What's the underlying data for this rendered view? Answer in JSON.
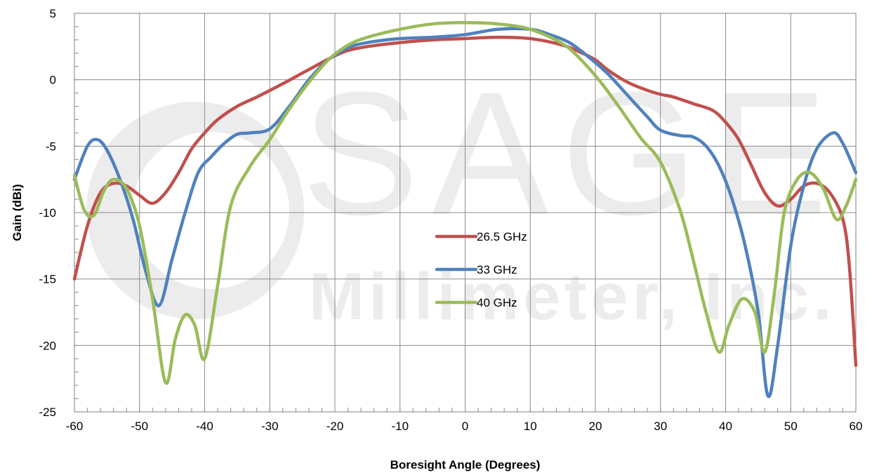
{
  "chart_data": {
    "type": "line",
    "xlabel": "Boresight Angle (Degrees)",
    "ylabel": "Gain (dBi)",
    "xlim": [
      -60,
      60
    ],
    "ylim": [
      -25,
      5
    ],
    "xticks": [
      -60,
      -50,
      -40,
      -30,
      -20,
      -10,
      0,
      10,
      20,
      30,
      40,
      50,
      60
    ],
    "yticks": [
      5,
      0,
      -5,
      -10,
      -15,
      -20,
      -25
    ],
    "grid": true,
    "legend_position": "center",
    "watermark": {
      "line1": "SAGE",
      "line2": "Millimeter, Inc."
    },
    "series": [
      {
        "name": "26.5 GHz",
        "color": "#c0504d",
        "x": [
          -60,
          -58,
          -56,
          -54,
          -52,
          -50,
          -48,
          -46,
          -44,
          -42,
          -40,
          -38,
          -35,
          -32,
          -28,
          -25,
          -22,
          -20,
          -18,
          -15,
          -10,
          -5,
          0,
          5,
          10,
          15,
          18,
          20,
          22,
          25,
          28,
          30,
          32,
          35,
          38,
          40,
          42,
          44,
          46,
          48,
          50,
          52,
          54,
          56,
          58,
          59,
          60
        ],
        "y": [
          -15,
          -11,
          -8.5,
          -7.8,
          -8,
          -8.7,
          -9.3,
          -8.5,
          -7,
          -5.2,
          -4,
          -3,
          -2,
          -1.3,
          -0.3,
          0.5,
          1.3,
          1.8,
          2.2,
          2.5,
          2.8,
          3,
          3.1,
          3.2,
          3.1,
          2.6,
          2,
          1.5,
          0.7,
          -0.2,
          -0.8,
          -1.1,
          -1.3,
          -1.8,
          -2.3,
          -3.2,
          -4.5,
          -6.5,
          -8.5,
          -9.5,
          -9,
          -8,
          -7.8,
          -8.5,
          -10.5,
          -14,
          -21.5
        ]
      },
      {
        "name": "33 GHz",
        "color": "#4f81bd",
        "x": [
          -60,
          -58,
          -56.5,
          -55,
          -53,
          -51,
          -49,
          -47,
          -45,
          -43,
          -41,
          -39,
          -37,
          -35,
          -33,
          -30,
          -27,
          -24,
          -21,
          -18,
          -15,
          -10,
          -5,
          0,
          5,
          10,
          13,
          16,
          19,
          22,
          25,
          28,
          30,
          33,
          35,
          37,
          39,
          41,
          43,
          45,
          46.5,
          48,
          50,
          52,
          54,
          56.5,
          58,
          60
        ],
        "y": [
          -7.5,
          -5,
          -4.5,
          -5.3,
          -7.5,
          -10.5,
          -14.5,
          -17,
          -13.5,
          -10,
          -7,
          -5.8,
          -4.8,
          -4.1,
          -4,
          -3.7,
          -2,
          0,
          1.5,
          2.4,
          2.8,
          3.1,
          3.2,
          3.4,
          3.8,
          3.8,
          3.4,
          2.8,
          1.7,
          0.4,
          -1.2,
          -2.8,
          -3.8,
          -4.2,
          -4.3,
          -5,
          -6.5,
          -9,
          -12.5,
          -17.5,
          -23.8,
          -20,
          -12.5,
          -8,
          -5.2,
          -4,
          -4.8,
          -7
        ]
      },
      {
        "name": "40 GHz",
        "color": "#9bbb59",
        "x": [
          -60,
          -58.5,
          -57,
          -55.5,
          -54,
          -52,
          -50,
          -48,
          -46,
          -44.5,
          -43,
          -41.5,
          -40,
          -38,
          -36,
          -33,
          -30,
          -27,
          -24,
          -21,
          -18,
          -15,
          -10,
          -5,
          0,
          5,
          10,
          15,
          18,
          21,
          24,
          27,
          30,
          33,
          35,
          37,
          39,
          40.5,
          42.5,
          44.5,
          46,
          47.5,
          49,
          51,
          53,
          55,
          57,
          58.5,
          60
        ],
        "y": [
          -7.2,
          -9.8,
          -10.2,
          -8.4,
          -7.5,
          -8.2,
          -11,
          -16.5,
          -22.8,
          -19.5,
          -17.7,
          -18.5,
          -21,
          -15.5,
          -9.5,
          -6.5,
          -4.5,
          -2.2,
          -0.2,
          1.5,
          2.6,
          3.2,
          3.8,
          4.2,
          4.3,
          4.2,
          3.8,
          2.7,
          1.4,
          -0.3,
          -2.3,
          -4.4,
          -6.2,
          -9.8,
          -13.5,
          -17.5,
          -20.5,
          -18.5,
          -16.5,
          -17.5,
          -20.5,
          -16,
          -10,
          -7.5,
          -7,
          -8.2,
          -10.5,
          -9.5,
          -7.5
        ]
      }
    ]
  }
}
